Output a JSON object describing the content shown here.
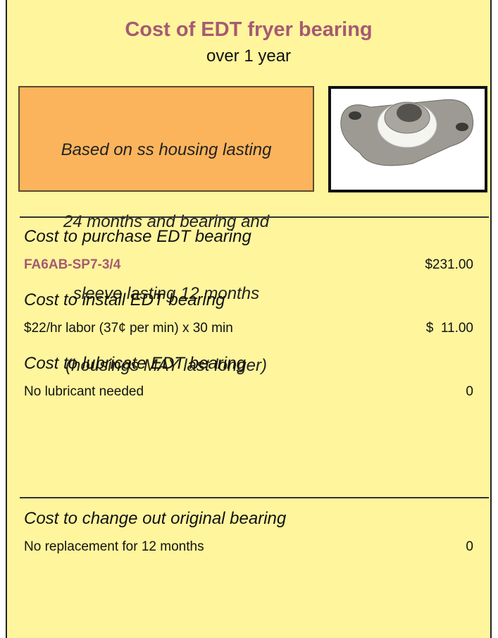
{
  "header": {
    "title": "Cost of EDT fryer bearing",
    "subtitle": "over 1 year"
  },
  "note": {
    "lines": [
      "Based on ss housing lasting",
      "24 months and bearing and",
      "sleeve lasting 12 months",
      "(housings MAY last longer)"
    ]
  },
  "rows": [
    {
      "heading": "Cost to purchase EDT bearing",
      "detail": "FA6AB-SP7-3/4",
      "amount": "$231.00"
    },
    {
      "heading": "Cost to install EDT bearing",
      "detail": "$22/hr labor (37¢ per min) x 30 min",
      "amount": "$  11.00"
    },
    {
      "heading": "Cost to lubricate EDT bearing",
      "detail": "No lubricant needed",
      "amount": "0"
    },
    {
      "heading": "Cost to change out original bearing",
      "detail": "No replacement for 12 months",
      "amount": "0"
    }
  ]
}
